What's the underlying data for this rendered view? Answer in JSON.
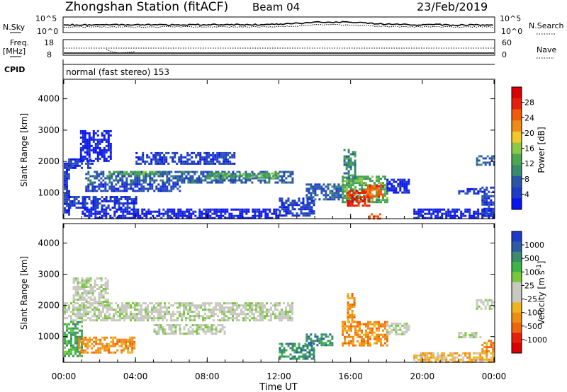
{
  "header": {
    "station": "Zhongshan Station (fitACF)",
    "beam": "Beam 04",
    "date": "23/Feb/2019"
  },
  "top_panels": {
    "nsky_label": "N.Sky",
    "nsearch_label": "N.Search",
    "nsky_ticks": [
      "10^5",
      "10^0"
    ],
    "nsearch_ticks": [
      "10^5",
      "10^0"
    ],
    "freq_label": "Freq.",
    "freq_unit": "[MHz]",
    "freq_ticks": [
      "18",
      "8"
    ],
    "nave_label": "Nave",
    "nave_ticks": [
      "60",
      "0"
    ],
    "cpid_label": "CPID",
    "cpid_text": "normal (fast stereo) 153"
  },
  "chart_data": [
    {
      "type": "heatmap",
      "name": "power",
      "ylabel": "Slant Range [km]",
      "xlabel": "",
      "ylim": [
        200,
        4600
      ],
      "yticks": [
        1000,
        2000,
        3000,
        4000
      ],
      "xlim": [
        0,
        24
      ],
      "colorbar": {
        "label": "Power [dB]",
        "ticks": [
          "4",
          "8",
          "12",
          "16",
          "20",
          "24",
          "28"
        ],
        "colors": [
          "#0a14f0",
          "#1e3cc8",
          "#2a56a8",
          "#3a8a6e",
          "#4aa850",
          "#8cc846",
          "#f0c828",
          "#f08c14",
          "#f05a0a",
          "#e61e0a",
          "#dc0000"
        ]
      },
      "regions": [
        {
          "t0": 0.0,
          "t1": 0.3,
          "r0": 300,
          "r1": 1900,
          "v": 1
        },
        {
          "t0": 0.0,
          "t1": 1.6,
          "r0": 1800,
          "r1": 2100,
          "v": 1
        },
        {
          "t0": 0.9,
          "t1": 2.6,
          "r0": 2000,
          "r1": 3000,
          "v": 0
        },
        {
          "t0": 1.2,
          "t1": 12.8,
          "r0": 1350,
          "r1": 1700,
          "v": 2
        },
        {
          "t0": 1.2,
          "t1": 6.5,
          "r0": 1050,
          "r1": 1300,
          "v": 1
        },
        {
          "t0": 2.5,
          "t1": 5.5,
          "r0": 1600,
          "r1": 1700,
          "v": 4
        },
        {
          "t0": 4.0,
          "t1": 9.5,
          "r0": 1900,
          "r1": 2300,
          "v": 1
        },
        {
          "t0": 8.0,
          "t1": 12.0,
          "r0": 1500,
          "r1": 1650,
          "v": 4
        },
        {
          "t0": 0.3,
          "t1": 4.0,
          "r0": 550,
          "r1": 900,
          "v": 1
        },
        {
          "t0": 1.0,
          "t1": 12.0,
          "r0": 200,
          "r1": 500,
          "v": 0
        },
        {
          "t0": 12.0,
          "t1": 14.0,
          "r0": 300,
          "r1": 850,
          "v": 1
        },
        {
          "t0": 13.5,
          "t1": 15.5,
          "r0": 800,
          "r1": 1300,
          "v": 2
        },
        {
          "t0": 15.5,
          "t1": 18.0,
          "r0": 700,
          "r1": 1550,
          "v": 4
        },
        {
          "t0": 15.8,
          "t1": 17.0,
          "r0": 600,
          "r1": 1100,
          "v": 9
        },
        {
          "t0": 16.8,
          "t1": 17.8,
          "r0": 850,
          "r1": 1250,
          "v": 8
        },
        {
          "t0": 15.6,
          "t1": 16.2,
          "r0": 1500,
          "r1": 2400,
          "v": 3
        },
        {
          "t0": 17.0,
          "t1": 17.6,
          "r0": 200,
          "r1": 350,
          "v": 8
        },
        {
          "t0": 18.0,
          "t1": 19.2,
          "r0": 1000,
          "r1": 1450,
          "v": 0
        },
        {
          "t0": 19.5,
          "t1": 24.0,
          "r0": 200,
          "r1": 500,
          "v": 0
        },
        {
          "t0": 22.0,
          "t1": 23.2,
          "r0": 950,
          "r1": 1150,
          "v": 1
        },
        {
          "t0": 23.0,
          "t1": 24.0,
          "r0": 1900,
          "r1": 2200,
          "v": 2
        },
        {
          "t0": 23.3,
          "t1": 24.0,
          "r0": 300,
          "r1": 1200,
          "v": 1
        }
      ]
    },
    {
      "type": "heatmap",
      "name": "velocity",
      "ylabel": "Slant Range [km]",
      "xlabel": "Time UT",
      "ylim": [
        200,
        4600
      ],
      "yticks": [
        1000,
        2000,
        3000,
        4000
      ],
      "xlim": [
        0,
        24
      ],
      "xticks": [
        "00:00",
        "04:00",
        "08:00",
        "12:00",
        "16:00",
        "20:00",
        "00:00"
      ],
      "colorbar": {
        "label": "Velocity [m s^-1]",
        "ticks": [
          "1000",
          "500",
          "100",
          "25",
          "-25",
          "-100",
          "-500",
          "-1000"
        ],
        "colors": [
          "#1e3cc8",
          "#2a5aa8",
          "#3c8c6e",
          "#3cb446",
          "#78c83c",
          "#c8c8c0",
          "#c8c8c0",
          "#f0b41e",
          "#f08c14",
          "#f0640a",
          "#e61e0a",
          "#dc0000"
        ]
      },
      "regions": [
        {
          "t0": 0.0,
          "t1": 12.8,
          "r0": 1500,
          "r1": 2100,
          "v": 5
        },
        {
          "t0": 0.5,
          "t1": 2.5,
          "r0": 2100,
          "r1": 2900,
          "v": 5
        },
        {
          "t0": 0.0,
          "t1": 1.0,
          "r0": 400,
          "r1": 1500,
          "v": 3
        },
        {
          "t0": 0.8,
          "t1": 4.0,
          "r0": 500,
          "r1": 1000,
          "v": 8
        },
        {
          "t0": 5.0,
          "t1": 9.0,
          "r0": 1100,
          "r1": 1400,
          "v": 5
        },
        {
          "t0": 12.0,
          "t1": 14.0,
          "r0": 300,
          "r1": 800,
          "v": 2
        },
        {
          "t0": 13.5,
          "t1": 15.0,
          "r0": 700,
          "r1": 1100,
          "v": 2
        },
        {
          "t0": 15.5,
          "t1": 18.0,
          "r0": 700,
          "r1": 1500,
          "v": 8
        },
        {
          "t0": 15.8,
          "t1": 16.2,
          "r0": 1500,
          "r1": 2400,
          "v": 8
        },
        {
          "t0": 18.0,
          "t1": 19.2,
          "r0": 1100,
          "r1": 1450,
          "v": 5
        },
        {
          "t0": 19.5,
          "t1": 24.0,
          "r0": 200,
          "r1": 500,
          "v": 7
        },
        {
          "t0": 22.0,
          "t1": 23.2,
          "r0": 950,
          "r1": 1150,
          "v": 5
        },
        {
          "t0": 23.0,
          "t1": 24.0,
          "r0": 1900,
          "r1": 2200,
          "v": 5
        },
        {
          "t0": 23.3,
          "t1": 24.0,
          "r0": 500,
          "r1": 900,
          "v": 8
        }
      ]
    }
  ]
}
